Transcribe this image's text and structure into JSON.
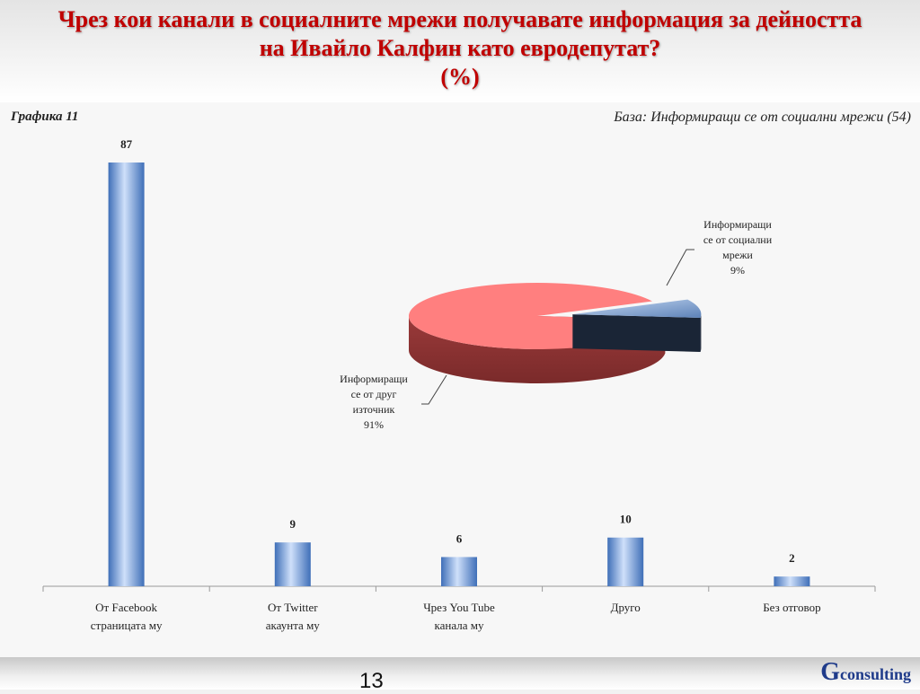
{
  "header": {
    "title_line1": "Чрез кои канали в социалните мрежи получавате информация за дейността",
    "title_line2": "на Ивайло Калфин като евродепутат?",
    "title_line3": "(%)"
  },
  "chart_number": "Графика 11",
  "base": "База:  Информиращи се от социални мрежи (54)",
  "chart_data": [
    {
      "type": "bar",
      "categories": [
        [
          "От Facebook",
          "страницата му"
        ],
        [
          "От Twitter",
          "акаунта му"
        ],
        [
          "Чрез You Tube",
          "канала му"
        ],
        [
          "Друго"
        ],
        [
          "Без отговор"
        ]
      ],
      "values": [
        87,
        9,
        6,
        10,
        2
      ],
      "ylim": [
        0,
        90
      ],
      "grid": false,
      "colors": {
        "bar_light": "#cfe0fa",
        "bar_mid": "#8db4e8",
        "bar_dark": "#3f6fb8"
      }
    },
    {
      "type": "pie",
      "slices": [
        {
          "label": [
            "Информиращи",
            "се от социални",
            "мрежи"
          ],
          "value": 9,
          "value_label": "9%",
          "color": "#6f93c4"
        },
        {
          "label": [
            "Информиращи",
            "се от друг",
            "източник"
          ],
          "value": 91,
          "value_label": "91%",
          "color": "#ff7f7f"
        }
      ]
    }
  ],
  "footer": {
    "page_number": "13",
    "logo_g": "G",
    "logo_text": "consulting"
  }
}
